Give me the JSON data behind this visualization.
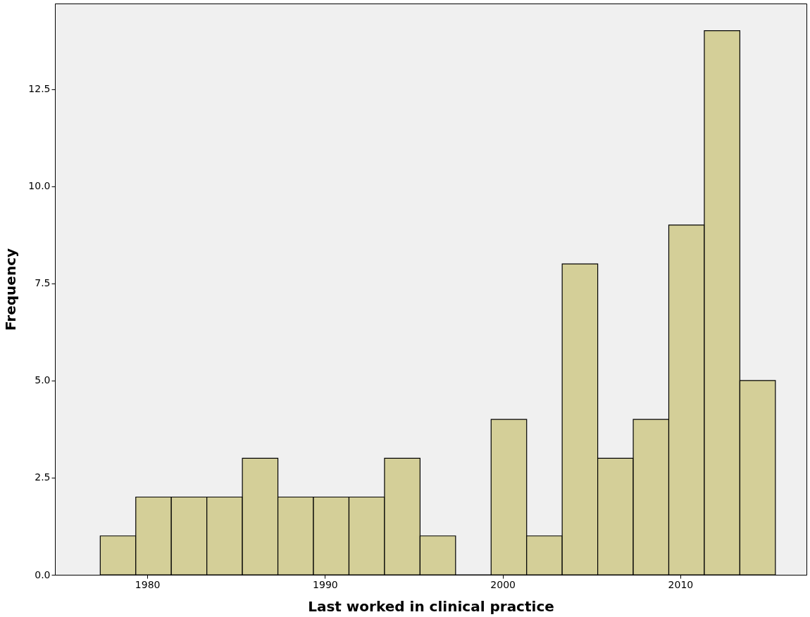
{
  "chart_data": {
    "type": "histogram",
    "xlabel": "Last worked in clinical practice",
    "ylabel": "Frequency",
    "bins": [
      1977.35,
      1979.35,
      1981.35,
      1983.35,
      1985.35,
      1987.35,
      1989.35,
      1991.35,
      1993.35,
      1995.35,
      1997.35,
      1999.35,
      2001.35,
      2003.35,
      2005.35,
      2007.35,
      2009.35,
      2011.35,
      2013.35,
      2015.35
    ],
    "values": [
      1,
      2,
      2,
      2,
      3,
      2,
      2,
      2,
      3,
      1,
      0,
      4,
      1,
      8,
      3,
      4,
      9,
      14,
      5
    ],
    "color": "#d4cf98",
    "xlim": [
      1974.8,
      2017.1
    ],
    "xticks": [
      1980,
      1990,
      2000,
      2010
    ],
    "ylim": [
      0,
      14.7
    ],
    "yticks": [
      {
        "value": 0,
        "label": "0.0"
      },
      2.5,
      {
        "value": 5,
        "label": "5.0"
      },
      7.5,
      {
        "value": 10,
        "label": "10.0"
      },
      12.5
    ],
    "grid": false
  }
}
